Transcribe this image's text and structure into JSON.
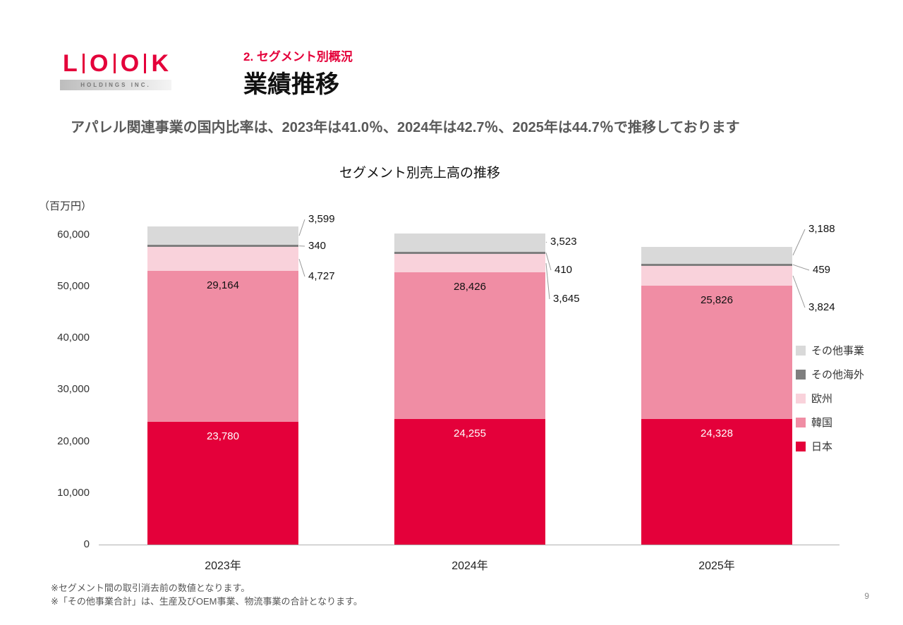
{
  "page": {
    "number": "9"
  },
  "logo": {
    "letters": [
      "L",
      "O",
      "O",
      "K"
    ],
    "subtext": "HOLDINGS INC."
  },
  "header": {
    "section": "2. セグメント別概況",
    "title": "業績推移"
  },
  "subtitle": "アパレル関連事業の国内比率は、2023年は41.0％、2024年は42.7％、2025年は44.7％で推移しております",
  "chart_data": {
    "type": "bar",
    "stacked": true,
    "title": "セグメント別売上高の推移",
    "unit_label": "（百万円）",
    "categories": [
      "2023年",
      "2024年",
      "2025年"
    ],
    "series": [
      {
        "name": "日本",
        "color": "#E4003A",
        "values": [
          23780,
          24255,
          24328
        ],
        "label_style": "inside-white"
      },
      {
        "name": "韓国",
        "color": "#F08DA4",
        "values": [
          29164,
          28426,
          25826
        ],
        "label_style": "inside-black"
      },
      {
        "name": "欧州",
        "color": "#F9D2DB",
        "values": [
          4727,
          3645,
          3824
        ],
        "label_style": "callout"
      },
      {
        "name": "その他海外",
        "color": "#7F7F7F",
        "values": [
          340,
          410,
          459
        ],
        "label_style": "callout"
      },
      {
        "name": "その他事業",
        "color": "#D9D9D9",
        "values": [
          3599,
          3523,
          3188
        ],
        "label_style": "callout"
      }
    ],
    "y_axis": {
      "ticks": [
        0,
        10000,
        20000,
        30000,
        40000,
        50000,
        60000
      ],
      "max": 60000
    },
    "legend": [
      "その他事業",
      "その他海外",
      "欧州",
      "韓国",
      "日本"
    ],
    "legend_position": "right",
    "grid": false
  },
  "footnotes": [
    "※セグメント間の取引消去前の数値となります。",
    "※「その他事業合計」は、生産及びOEM事業、物流事業の合計となります。"
  ]
}
